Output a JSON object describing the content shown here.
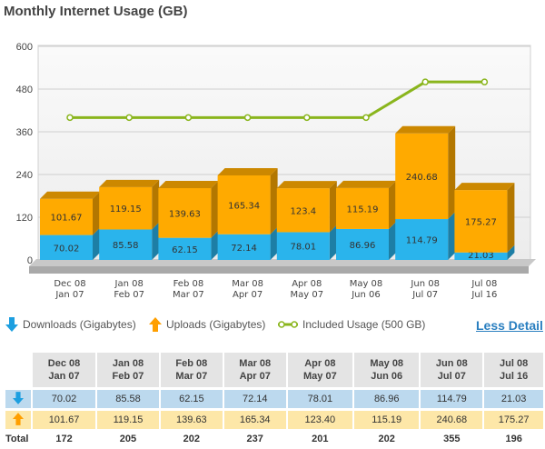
{
  "page_title": "Monthly Internet Usage (GB)",
  "links": {
    "less_detail": "Less Detail"
  },
  "legend": {
    "downloads": "Downloads (Gigabytes)",
    "uploads": "Uploads (Gigabytes)",
    "included": "Included Usage (500 GB)"
  },
  "colors": {
    "downloads": "#2ab4ec",
    "uploads": "#ffaa00",
    "included": "#8ab51d",
    "plot_bg": "#f2f2f2",
    "platform": "#a9a9a9"
  },
  "table": {
    "total_label": "Total",
    "periods": [
      {
        "line1": "Dec 08",
        "line2": "Jan 07"
      },
      {
        "line1": "Jan 08",
        "line2": "Feb 07"
      },
      {
        "line1": "Feb 08",
        "line2": "Mar 07"
      },
      {
        "line1": "Mar 08",
        "line2": "Apr 07"
      },
      {
        "line1": "Apr 08",
        "line2": "May 07"
      },
      {
        "line1": "May 08",
        "line2": "Jun 06"
      },
      {
        "line1": "Jun 08",
        "line2": "Jul 07"
      },
      {
        "line1": "Jul 08",
        "line2": "Jul 16"
      }
    ],
    "downloads": [
      "70.02",
      "85.58",
      "62.15",
      "72.14",
      "78.01",
      "86.96",
      "114.79",
      "21.03"
    ],
    "uploads": [
      "101.67",
      "119.15",
      "139.63",
      "165.34",
      "123.40",
      "115.19",
      "240.68",
      "175.27"
    ],
    "totals": [
      "172",
      "205",
      "202",
      "237",
      "201",
      "202",
      "355",
      "196"
    ]
  },
  "chart_data": {
    "type": "bar",
    "stacked": true,
    "categories": [
      "Dec 08 Jan 07",
      "Jan 08 Feb 07",
      "Feb 08 Mar 07",
      "Mar 08 Apr 07",
      "Apr 08 May 07",
      "May 08 Jun 06",
      "Jun 08 Jul 07",
      "Jul 08 Jul 16"
    ],
    "category_lines": [
      [
        "Dec 08",
        "Jan 07"
      ],
      [
        "Jan 08",
        "Feb 07"
      ],
      [
        "Feb 08",
        "Mar 07"
      ],
      [
        "Mar 08",
        "Apr 07"
      ],
      [
        "Apr 08",
        "May 07"
      ],
      [
        "May 08",
        "Jun 06"
      ],
      [
        "Jun 08",
        "Jul 07"
      ],
      [
        "Jul 08",
        "Jul 16"
      ]
    ],
    "series": [
      {
        "name": "Downloads (Gigabytes)",
        "type": "bar",
        "values": [
          70.02,
          85.58,
          62.15,
          72.14,
          78.01,
          86.96,
          114.79,
          21.03
        ],
        "labels": [
          "70.02",
          "85.58",
          "62.15",
          "72.14",
          "78.01",
          "86.96",
          "114.79",
          "21.03"
        ]
      },
      {
        "name": "Uploads (Gigabytes)",
        "type": "bar",
        "values": [
          101.67,
          119.15,
          139.63,
          165.34,
          123.4,
          115.19,
          240.68,
          175.27
        ],
        "labels": [
          "101.67",
          "119.15",
          "139.63",
          "165.34",
          "123.4",
          "115.19",
          "240.68",
          "175.27"
        ]
      },
      {
        "name": "Included Usage (500 GB)",
        "type": "line",
        "values": [
          400,
          400,
          400,
          400,
          400,
          400,
          500,
          500
        ]
      }
    ],
    "yticks": [
      0,
      120,
      240,
      360,
      480,
      600
    ],
    "ylim": [
      0,
      600
    ],
    "grid": true,
    "legend": "bottom"
  }
}
